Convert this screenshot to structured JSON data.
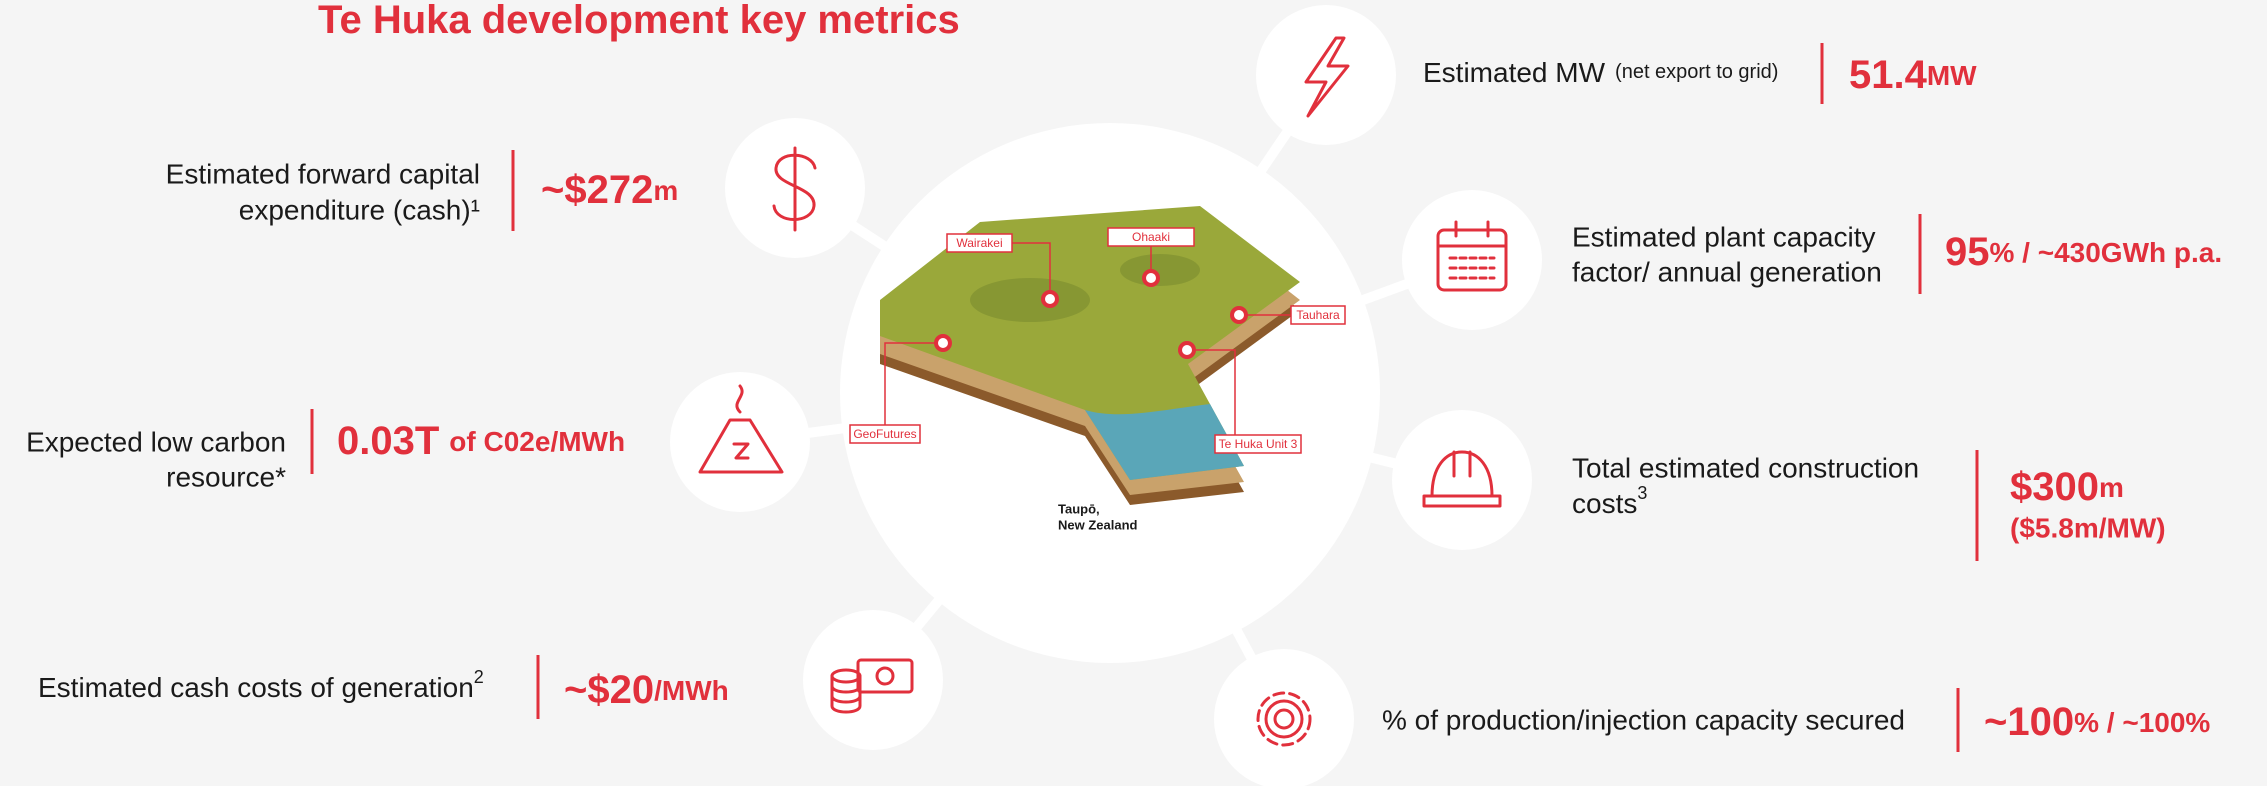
{
  "title": "Te Huka development key metrics",
  "map": {
    "labels": [
      "Wairakei",
      "Ohaaki",
      "Tauhara",
      "GeoFutures",
      "Te Huka Unit 3"
    ],
    "caption": [
      "Taupō,",
      "New Zealand"
    ]
  },
  "metrics": [
    {
      "label": [
        "Estimated MW"
      ],
      "note": "(net export to grid)",
      "value": "51.4",
      "unit": "MW"
    },
    {
      "label": [
        "Estimated forward capital",
        "expenditure (cash)¹"
      ],
      "value": "~$272",
      "unit": "m"
    },
    {
      "label": [
        "Estimated plant capacity",
        "factor/ annual generation"
      ],
      "value": "95",
      "unit": "% / ~430GWh p.a."
    },
    {
      "label": [
        "Expected low carbon",
        "resource*"
      ],
      "value": "0.03T",
      "unit": "of C02e/MWh"
    },
    {
      "label": [
        "Total estimated construction",
        "costs"
      ],
      "footnote": "3",
      "value": "$300",
      "unit": "m",
      "detail": "($5.8m/MW)"
    },
    {
      "label": [
        "Estimated cash costs of generation"
      ],
      "footnote": "2",
      "value": "~$20",
      "unit": "/MWh"
    },
    {
      "label": [
        "% of production/injection capacity secured"
      ],
      "value": "~100",
      "unit": "% / ~100%"
    }
  ]
}
